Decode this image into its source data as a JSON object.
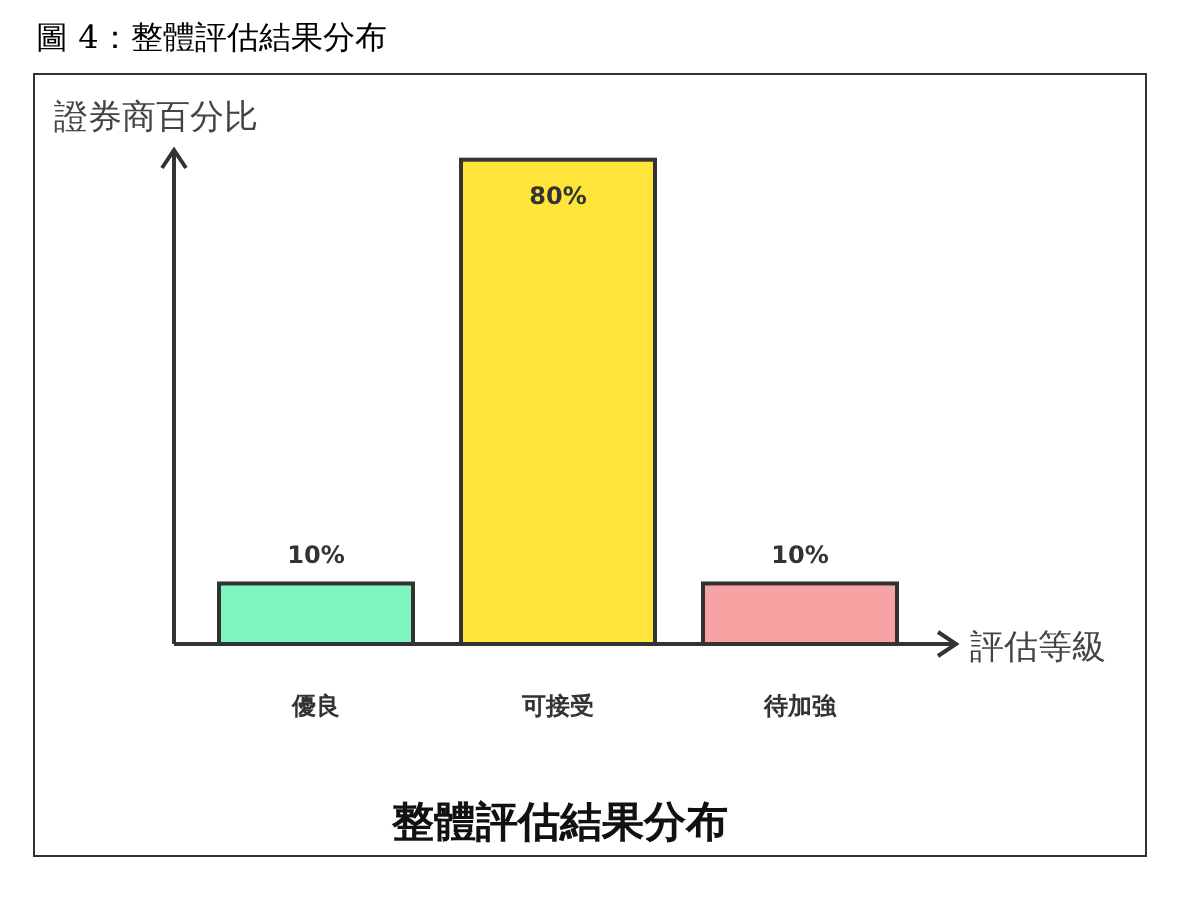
{
  "chart_data": {
    "type": "bar",
    "title": "整體評估結果分布",
    "ylabel": "證券商百分比",
    "xlabel": "評估等級",
    "annotations": [
      "圖 4：整體評估結果分布"
    ],
    "categories": [
      "優良",
      "可接受",
      "待加強"
    ],
    "values": [
      10,
      80,
      10
    ],
    "value_labels": [
      "10%",
      "80%",
      "10%"
    ],
    "colors": [
      "#80f5c0",
      "#ffe53a",
      "#f8a3a3"
    ]
  }
}
